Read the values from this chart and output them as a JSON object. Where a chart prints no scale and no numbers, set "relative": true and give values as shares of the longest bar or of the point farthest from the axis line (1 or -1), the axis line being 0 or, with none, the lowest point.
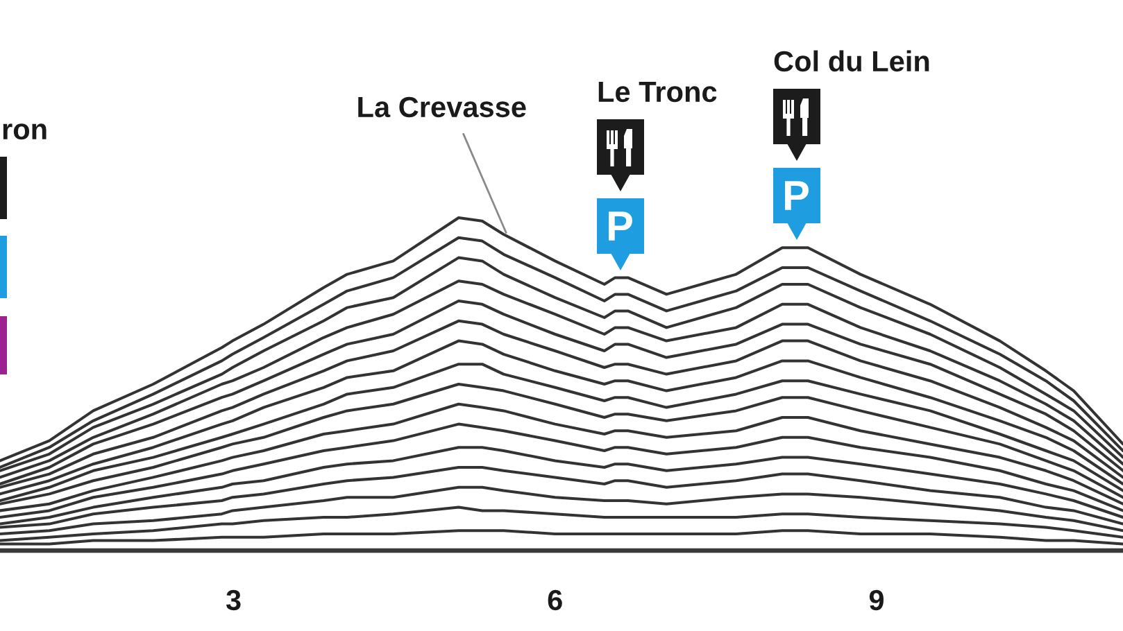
{
  "chart_data": {
    "type": "line",
    "relative": true,
    "grid": false,
    "x": [
      0.82,
      1.28,
      1.69,
      2.25,
      2.89,
      2.99,
      3.28,
      3.84,
      4.06,
      4.49,
      5.1,
      5.32,
      5.52,
      6,
      6.46,
      6.56,
      6.68,
      7.04,
      7.69,
      8.12,
      8.36,
      8.85,
      9.5,
      10.15,
      10.58,
      10.84,
      11.3
    ],
    "xlim": [
      0.82,
      11.3
    ],
    "xticks": [
      3,
      6,
      9
    ],
    "series": [
      {
        "color": "#333333",
        "values": [
          0.27,
          0.33,
          0.42,
          0.5,
          0.61,
          0.63,
          0.68,
          0.79,
          0.83,
          0.87,
          1,
          0.99,
          0.95,
          0.87,
          0.8,
          0.82,
          0.82,
          0.77,
          0.83,
          0.91,
          0.91,
          0.83,
          0.74,
          0.63,
          0.54,
          0.48,
          0.32
        ]
      },
      {
        "color": "#333333",
        "values": [
          0.25,
          0.31,
          0.39,
          0.47,
          0.57,
          0.59,
          0.64,
          0.74,
          0.78,
          0.82,
          0.94,
          0.93,
          0.89,
          0.82,
          0.75,
          0.77,
          0.77,
          0.72,
          0.78,
          0.85,
          0.85,
          0.78,
          0.69,
          0.59,
          0.51,
          0.45,
          0.3
        ]
      },
      {
        "color": "#333333",
        "values": [
          0.24,
          0.29,
          0.37,
          0.44,
          0.53,
          0.55,
          0.6,
          0.69,
          0.73,
          0.76,
          0.88,
          0.87,
          0.83,
          0.76,
          0.7,
          0.72,
          0.72,
          0.67,
          0.73,
          0.8,
          0.8,
          0.73,
          0.65,
          0.55,
          0.47,
          0.42,
          0.28
        ]
      },
      {
        "color": "#333333",
        "values": [
          0.22,
          0.27,
          0.34,
          0.41,
          0.5,
          0.51,
          0.55,
          0.64,
          0.67,
          0.71,
          0.81,
          0.8,
          0.77,
          0.71,
          0.65,
          0.67,
          0.67,
          0.63,
          0.67,
          0.74,
          0.74,
          0.67,
          0.6,
          0.51,
          0.44,
          0.39,
          0.26
        ]
      },
      {
        "color": "#333333",
        "values": [
          0.2,
          0.25,
          0.32,
          0.38,
          0.46,
          0.47,
          0.51,
          0.59,
          0.62,
          0.65,
          0.75,
          0.74,
          0.71,
          0.65,
          0.6,
          0.62,
          0.62,
          0.58,
          0.62,
          0.68,
          0.68,
          0.62,
          0.56,
          0.47,
          0.41,
          0.36,
          0.24
        ]
      },
      {
        "color": "#333333",
        "values": [
          0.19,
          0.23,
          0.29,
          0.34,
          0.42,
          0.43,
          0.47,
          0.54,
          0.57,
          0.6,
          0.69,
          0.68,
          0.65,
          0.6,
          0.55,
          0.56,
          0.56,
          0.53,
          0.57,
          0.63,
          0.63,
          0.57,
          0.51,
          0.43,
          0.37,
          0.33,
          0.22
        ]
      },
      {
        "color": "#333333",
        "values": [
          0.17,
          0.21,
          0.26,
          0.31,
          0.38,
          0.39,
          0.43,
          0.49,
          0.52,
          0.54,
          0.63,
          0.62,
          0.59,
          0.54,
          0.5,
          0.51,
          0.51,
          0.48,
          0.52,
          0.57,
          0.57,
          0.52,
          0.46,
          0.39,
          0.34,
          0.3,
          0.2
        ]
      },
      {
        "color": "#333333",
        "values": [
          0.15,
          0.19,
          0.24,
          0.28,
          0.34,
          0.35,
          0.38,
          0.44,
          0.47,
          0.49,
          0.56,
          0.56,
          0.53,
          0.49,
          0.45,
          0.46,
          0.46,
          0.43,
          0.47,
          0.51,
          0.51,
          0.47,
          0.42,
          0.35,
          0.3,
          0.27,
          0.18
        ]
      },
      {
        "color": "#333333",
        "values": [
          0.14,
          0.17,
          0.21,
          0.25,
          0.31,
          0.32,
          0.34,
          0.4,
          0.42,
          0.44,
          0.5,
          0.49,
          0.48,
          0.44,
          0.4,
          0.41,
          0.41,
          0.39,
          0.42,
          0.46,
          0.46,
          0.42,
          0.37,
          0.32,
          0.27,
          0.24,
          0.16
        ]
      },
      {
        "color": "#333333",
        "values": [
          0.12,
          0.14,
          0.18,
          0.22,
          0.27,
          0.28,
          0.3,
          0.35,
          0.36,
          0.38,
          0.44,
          0.43,
          0.42,
          0.38,
          0.35,
          0.36,
          0.36,
          0.34,
          0.36,
          0.4,
          0.4,
          0.36,
          0.32,
          0.28,
          0.24,
          0.21,
          0.14
        ]
      },
      {
        "color": "#333333",
        "values": [
          0.1,
          0.12,
          0.16,
          0.19,
          0.23,
          0.24,
          0.26,
          0.3,
          0.31,
          0.33,
          0.38,
          0.37,
          0.36,
          0.33,
          0.3,
          0.31,
          0.31,
          0.29,
          0.31,
          0.34,
          0.34,
          0.31,
          0.28,
          0.24,
          0.2,
          0.18,
          0.12
        ]
      },
      {
        "color": "#333333",
        "values": [
          0.08,
          0.1,
          0.13,
          0.16,
          0.19,
          0.2,
          0.21,
          0.25,
          0.26,
          0.27,
          0.31,
          0.31,
          0.3,
          0.27,
          0.25,
          0.26,
          0.26,
          0.24,
          0.26,
          0.28,
          0.28,
          0.26,
          0.23,
          0.2,
          0.17,
          0.15,
          0.1
        ]
      },
      {
        "color": "#333333",
        "values": [
          0.07,
          0.08,
          0.11,
          0.13,
          0.15,
          0.16,
          0.17,
          0.2,
          0.21,
          0.22,
          0.25,
          0.25,
          0.24,
          0.22,
          0.2,
          0.21,
          0.21,
          0.19,
          0.21,
          0.23,
          0.23,
          0.21,
          0.18,
          0.16,
          0.13,
          0.12,
          0.08
        ]
      },
      {
        "color": "#333333",
        "values": [
          0.05,
          0.06,
          0.08,
          0.09,
          0.11,
          0.12,
          0.13,
          0.15,
          0.16,
          0.16,
          0.19,
          0.19,
          0.18,
          0.16,
          0.15,
          0.15,
          0.15,
          0.14,
          0.16,
          0.17,
          0.17,
          0.16,
          0.14,
          0.12,
          0.1,
          0.09,
          0.06
        ]
      },
      {
        "color": "#333333",
        "values": [
          0.03,
          0.04,
          0.05,
          0.06,
          0.08,
          0.08,
          0.09,
          0.1,
          0.1,
          0.11,
          0.13,
          0.12,
          0.12,
          0.11,
          0.1,
          0.1,
          0.1,
          0.1,
          0.1,
          0.11,
          0.11,
          0.1,
          0.09,
          0.08,
          0.07,
          0.06,
          0.04
        ]
      },
      {
        "color": "#333333",
        "values": [
          0.02,
          0.02,
          0.03,
          0.03,
          0.04,
          0.04,
          0.04,
          0.05,
          0.05,
          0.05,
          0.06,
          0.06,
          0.06,
          0.05,
          0.05,
          0.05,
          0.05,
          0.05,
          0.05,
          0.06,
          0.06,
          0.05,
          0.05,
          0.04,
          0.03,
          0.03,
          0.02
        ]
      }
    ],
    "annotations": [
      "ron",
      {
        "text": "La Crevasse",
        "x": 5.55,
        "y": 0.95
      },
      "Le Tronc",
      "Col du Lein"
    ]
  }
}
